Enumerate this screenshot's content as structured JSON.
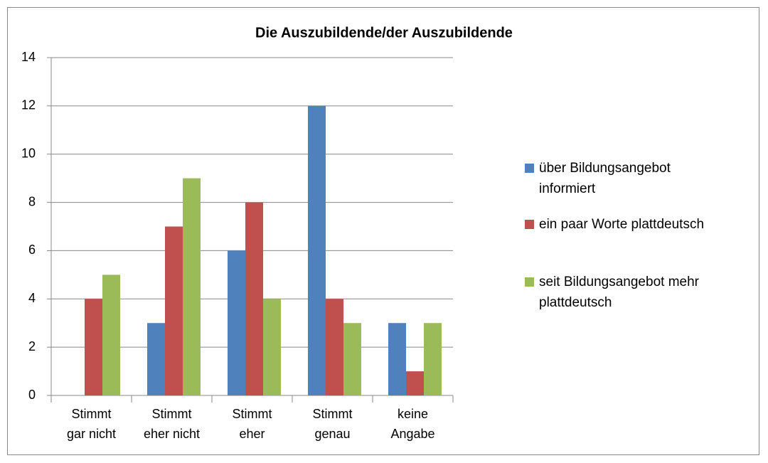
{
  "chart_data": {
    "type": "bar",
    "title": "Die Auszubildende/der Auszubildende",
    "categories": [
      [
        "Stimmt",
        "gar nicht"
      ],
      [
        "Stimmt",
        "eher nicht"
      ],
      [
        "Stimmt",
        "eher"
      ],
      [
        "Stimmt",
        "genau"
      ],
      [
        "keine",
        "Angabe"
      ]
    ],
    "series": [
      {
        "name": "über Bildungsangebot informiert",
        "color": "#4f81bd",
        "values": [
          0,
          3,
          6,
          12,
          3
        ]
      },
      {
        "name": "ein paar Worte plattdeutsch",
        "color": "#c0504d",
        "values": [
          4,
          7,
          8,
          4,
          1
        ]
      },
      {
        "name": "seit Bildungsangebot mehr plattdeutsch",
        "color": "#9bbb59",
        "values": [
          5,
          9,
          4,
          3,
          3
        ]
      }
    ],
    "ylim": [
      0,
      14
    ],
    "yticks": [
      0,
      2,
      4,
      6,
      8,
      10,
      12,
      14
    ],
    "grid": true,
    "legend": "right"
  }
}
